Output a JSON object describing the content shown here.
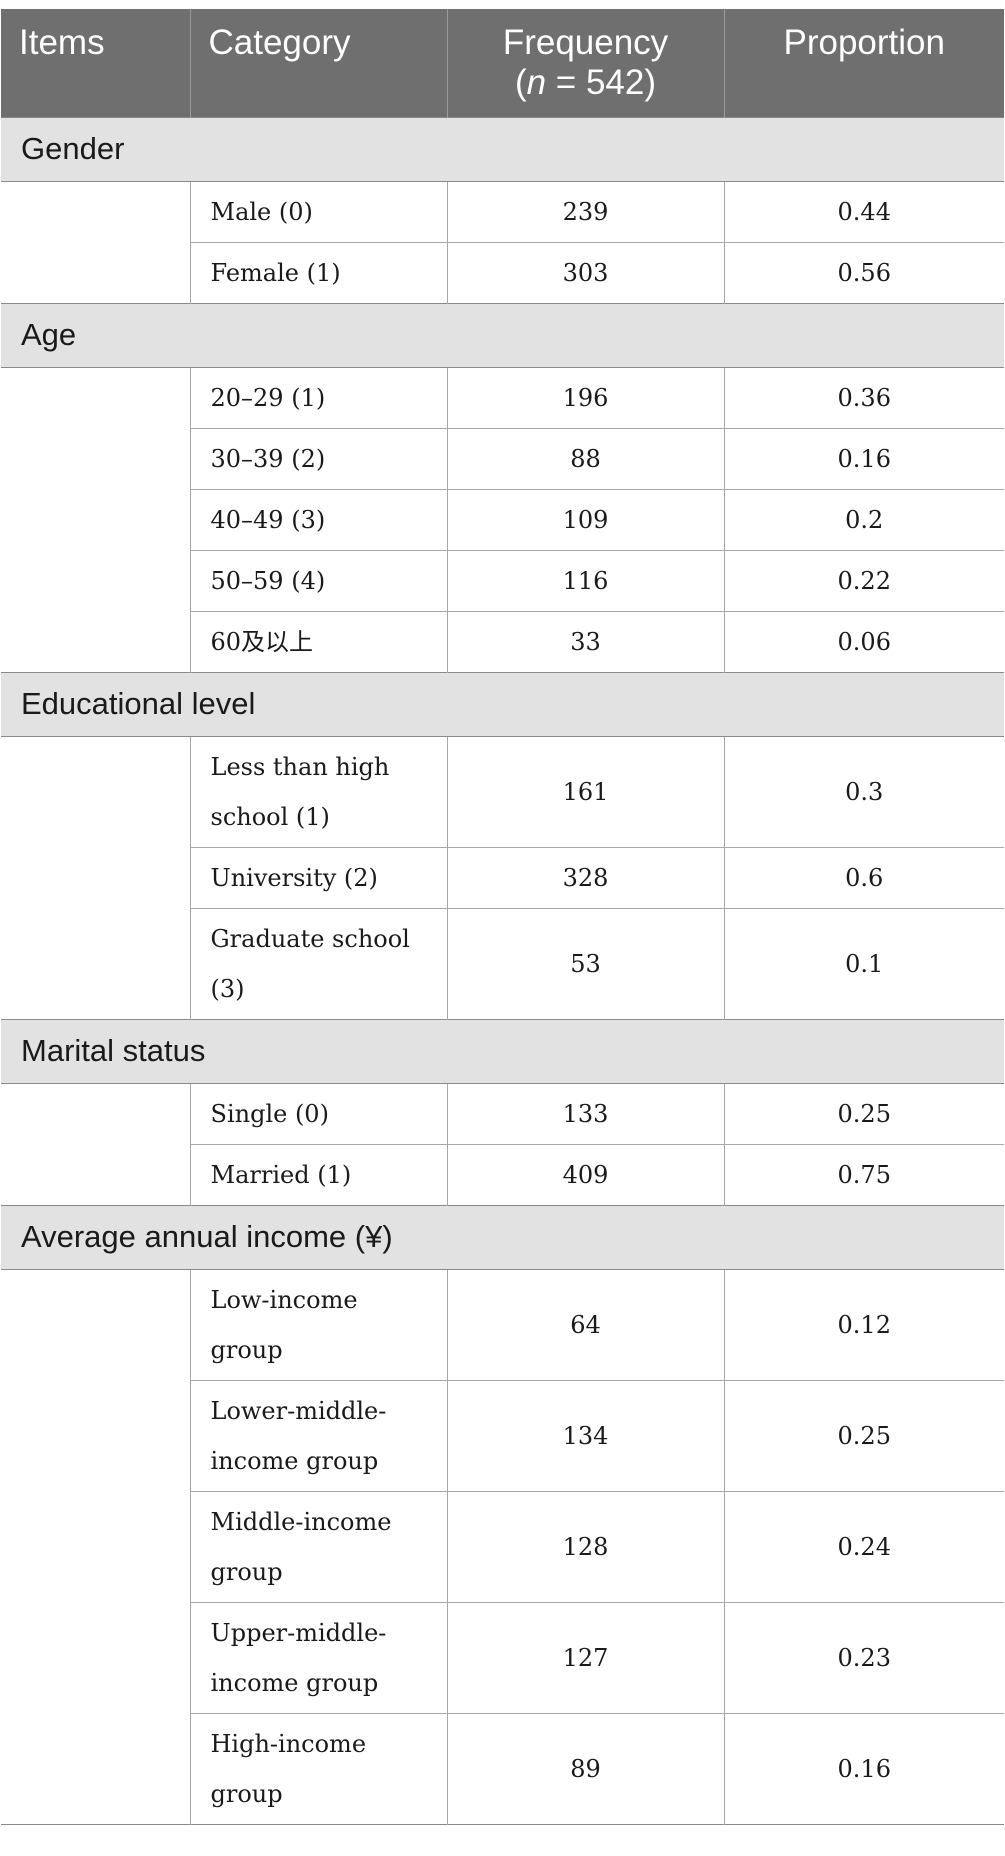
{
  "table": {
    "headers": {
      "items": "Items",
      "category": "Category",
      "frequency_line1": "Frequency",
      "frequency_open": "(",
      "frequency_n": "n",
      "frequency_rest": " = 542)",
      "proportion": "Proportion"
    },
    "groups": [
      {
        "label": "Gender",
        "rows": [
          {
            "category": "Male (0)",
            "frequency": "239",
            "proportion": "0.44"
          },
          {
            "category": "Female (1)",
            "frequency": "303",
            "proportion": "0.56"
          }
        ]
      },
      {
        "label": "Age",
        "rows": [
          {
            "category": "20–29 (1)",
            "frequency": "196",
            "proportion": "0.36"
          },
          {
            "category": "30–39 (2)",
            "frequency": "88",
            "proportion": "0.16"
          },
          {
            "category": "40–49 (3)",
            "frequency": "109",
            "proportion": "0.2"
          },
          {
            "category": "50–59 (4)",
            "frequency": "116",
            "proportion": "0.22"
          },
          {
            "category": "60及以上",
            "frequency": "33",
            "proportion": "0.06"
          }
        ]
      },
      {
        "label": "Educational level",
        "rows": [
          {
            "category": "Less than high school (1)",
            "frequency": "161",
            "proportion": "0.3"
          },
          {
            "category": "University (2)",
            "frequency": "328",
            "proportion": "0.6"
          },
          {
            "category": "Graduate school (3)",
            "frequency": "53",
            "proportion": "0.1"
          }
        ]
      },
      {
        "label": "Marital status",
        "rows": [
          {
            "category": "Single (0)",
            "frequency": "133",
            "proportion": "0.25"
          },
          {
            "category": "Married (1)",
            "frequency": "409",
            "proportion": "0.75"
          }
        ]
      },
      {
        "label": "Average annual income (¥)",
        "rows": [
          {
            "category": "Low-income group",
            "frequency": "64",
            "proportion": "0.12"
          },
          {
            "category": "Lower-middle-income group",
            "frequency": "134",
            "proportion": "0.25"
          },
          {
            "category": "Middle-income group",
            "frequency": "128",
            "proportion": "0.24"
          },
          {
            "category": "Upper-middle-income group",
            "frequency": "127",
            "proportion": "0.23"
          },
          {
            "category": "High-income group",
            "frequency": "89",
            "proportion": "0.16"
          }
        ]
      }
    ]
  }
}
